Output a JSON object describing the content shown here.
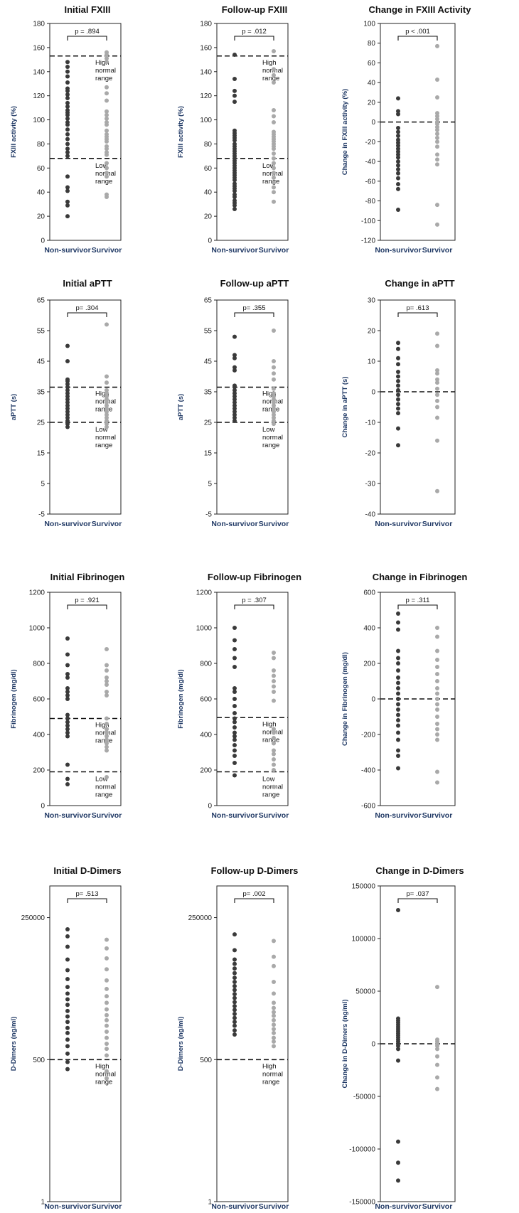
{
  "colors": {
    "nonsurvivor": "#3a3a3a",
    "survivor": "#a9a9a9",
    "axis": "#222222",
    "label": "#1f3864"
  },
  "chart_data": [
    {
      "type": "scatter",
      "id": "initial-fxiii",
      "title": "Initial FXIII",
      "ylabel": "FXIII activity (%)",
      "ylim": [
        0,
        180
      ],
      "yticks": [
        0,
        20,
        40,
        60,
        80,
        100,
        120,
        140,
        160,
        180
      ],
      "categories": [
        "Non-survivor",
        "Survivor"
      ],
      "pvalue": "p = .894",
      "refs": [
        {
          "y": 153,
          "label": [
            "High",
            "normal",
            "range"
          ]
        },
        {
          "y": 68,
          "label": [
            "Low",
            "normal",
            "range"
          ]
        }
      ],
      "series": [
        {
          "name": "Non-survivor",
          "values": [
            20,
            29,
            32,
            41,
            44,
            53,
            70,
            73,
            76,
            80,
            84,
            88,
            92,
            96,
            98,
            101,
            104,
            106,
            108,
            111,
            114,
            118,
            121,
            124,
            126,
            131,
            136,
            140,
            144,
            148
          ]
        },
        {
          "name": "Survivor",
          "values": [
            36,
            38,
            53,
            56,
            60,
            64,
            71,
            73,
            76,
            78,
            82,
            84,
            86,
            88,
            91,
            96,
            98,
            101,
            104,
            107,
            116,
            122,
            127,
            148,
            151,
            154,
            156
          ]
        }
      ]
    },
    {
      "type": "scatter",
      "id": "followup-fxiii",
      "title": "Follow-up FXIII",
      "ylabel": "FXIII activity (%)",
      "ylim": [
        0,
        180
      ],
      "yticks": [
        0,
        20,
        40,
        60,
        80,
        100,
        120,
        140,
        160,
        180
      ],
      "categories": [
        "Non-survivor",
        "Survivor"
      ],
      "pvalue": "p = .012",
      "refs": [
        {
          "y": 153,
          "label": [
            "High",
            "normal",
            "range"
          ]
        },
        {
          "y": 68,
          "label": [
            "Low",
            "normal",
            "range"
          ]
        }
      ],
      "series": [
        {
          "name": "Non-survivor",
          "values": [
            26,
            29,
            31,
            33,
            36,
            38,
            41,
            43,
            45,
            47,
            50,
            52,
            54,
            56,
            58,
            60,
            62,
            64,
            66,
            68,
            70,
            72,
            74,
            76,
            78,
            80,
            83,
            85,
            87,
            89,
            91,
            115,
            120,
            124,
            134,
            154
          ]
        },
        {
          "name": "Survivor",
          "values": [
            32,
            40,
            44,
            48,
            52,
            56,
            60,
            64,
            68,
            72,
            76,
            78,
            80,
            82,
            84,
            86,
            88,
            90,
            98,
            103,
            108,
            131,
            137,
            142,
            157
          ]
        }
      ]
    },
    {
      "type": "scatter",
      "id": "change-fxiii",
      "title": "Change in FXIII Activity",
      "ylabel": "Change in FXIII activity (%)",
      "ylim": [
        -120,
        100
      ],
      "yticks": [
        -120,
        -100,
        -80,
        -60,
        -40,
        -20,
        0,
        20,
        40,
        60,
        80,
        100
      ],
      "categories": [
        "Non-survivor",
        "Survivor"
      ],
      "pvalue": "p < .001",
      "refs": [
        {
          "y": 0,
          "label": []
        }
      ],
      "series": [
        {
          "name": "Non-survivor",
          "values": [
            -89,
            -68,
            -63,
            -57,
            -52,
            -48,
            -44,
            -40,
            -36,
            -33,
            -30,
            -27,
            -24,
            -21,
            -18,
            -14,
            -10,
            -6,
            8,
            11,
            24
          ]
        },
        {
          "name": "Survivor",
          "values": [
            -104,
            -84,
            -43,
            -38,
            -33,
            -25,
            -20,
            -16,
            -12,
            -8,
            -5,
            -2,
            0,
            3,
            6,
            9,
            25,
            43,
            77
          ]
        }
      ]
    },
    {
      "type": "scatter",
      "id": "initial-aptt",
      "title": "Initial aPTT",
      "ylabel": "aPTT (s)",
      "ylim": [
        -5,
        65
      ],
      "yticks": [
        -5,
        5,
        15,
        25,
        35,
        45,
        55,
        65
      ],
      "categories": [
        "Non-survivor",
        "Survivor"
      ],
      "pvalue": "p= .304",
      "refs": [
        {
          "y": 36.5,
          "label": [
            "High",
            "normal",
            "range"
          ]
        },
        {
          "y": 25,
          "label": [
            "Low",
            "normal",
            "range"
          ]
        }
      ],
      "series": [
        {
          "name": "Non-survivor",
          "values": [
            23.5,
            24.5,
            25.5,
            26.5,
            27.5,
            28.5,
            29.5,
            30.5,
            31.5,
            32.5,
            33.5,
            34.5,
            35.5,
            36.5,
            37.5,
            38.5,
            39,
            45,
            50
          ]
        },
        {
          "name": "Survivor",
          "values": [
            23.5,
            24.5,
            25.5,
            26.5,
            27.5,
            28.5,
            29.5,
            30.5,
            31.5,
            32.5,
            33.5,
            34.5,
            35.5,
            38,
            40,
            57
          ]
        }
      ]
    },
    {
      "type": "scatter",
      "id": "followup-aptt",
      "title": "Follow-up aPTT",
      "ylabel": "aPTT (s)",
      "ylim": [
        -5,
        65
      ],
      "yticks": [
        -5,
        5,
        15,
        25,
        35,
        45,
        55,
        65
      ],
      "categories": [
        "Non-survivor",
        "Survivor"
      ],
      "pvalue": "p= .355",
      "refs": [
        {
          "y": 36.5,
          "label": [
            "High",
            "normal",
            "range"
          ]
        },
        {
          "y": 25,
          "label": [
            "Low",
            "normal",
            "range"
          ]
        }
      ],
      "series": [
        {
          "name": "Non-survivor",
          "values": [
            25.5,
            26.5,
            27.5,
            28.5,
            29.5,
            30.5,
            31.5,
            32.5,
            33.5,
            34.5,
            35.5,
            36.5,
            37,
            42,
            43,
            46,
            47,
            53
          ]
        },
        {
          "name": "Survivor",
          "values": [
            24.5,
            25.5,
            26.5,
            27.5,
            28.5,
            29.5,
            30.5,
            31.5,
            32.5,
            33.5,
            34.5,
            36,
            39,
            41,
            43,
            45,
            55
          ]
        }
      ]
    },
    {
      "type": "scatter",
      "id": "change-aptt",
      "title": "Change in aPTT",
      "ylabel": "Change in aPTT (s)",
      "ylim": [
        -40,
        30
      ],
      "yticks": [
        -40,
        -30,
        -20,
        -10,
        0,
        10,
        20,
        30
      ],
      "categories": [
        "Non-survivor",
        "Survivor"
      ],
      "pvalue": "p= .613",
      "refs": [
        {
          "y": 0,
          "label": []
        }
      ],
      "series": [
        {
          "name": "Non-survivor",
          "values": [
            -17.5,
            -12,
            -7,
            -5.5,
            -4,
            -2.5,
            -1,
            0.5,
            2,
            3.5,
            5,
            6.5,
            9,
            11,
            14,
            16
          ]
        },
        {
          "name": "Survivor",
          "values": [
            -32.5,
            -16,
            -8.5,
            -5,
            -3,
            -1,
            1,
            3,
            4,
            6,
            7,
            15,
            19
          ]
        }
      ]
    },
    {
      "type": "scatter",
      "id": "initial-fibrinogen",
      "title": "Initial Fibrinogen",
      "ylabel": "Fibrinogen (mg/dl)",
      "ylim": [
        0,
        1200
      ],
      "yticks": [
        0,
        200,
        400,
        600,
        800,
        1000,
        1200
      ],
      "categories": [
        "Non-survivor",
        "Survivor"
      ],
      "pvalue": "p = .921",
      "refs": [
        {
          "y": 490,
          "label": [
            "High",
            "normal",
            "range"
          ]
        },
        {
          "y": 190,
          "label": [
            "Low",
            "normal",
            "range"
          ]
        }
      ],
      "series": [
        {
          "name": "Non-survivor",
          "values": [
            120,
            150,
            230,
            390,
            410,
            430,
            450,
            470,
            490,
            510,
            600,
            620,
            640,
            660,
            720,
            740,
            790,
            850,
            940
          ]
        },
        {
          "name": "Survivor",
          "values": [
            160,
            310,
            330,
            350,
            370,
            390,
            410,
            430,
            460,
            490,
            620,
            640,
            680,
            700,
            720,
            760,
            790,
            880
          ]
        }
      ]
    },
    {
      "type": "scatter",
      "id": "followup-fibrinogen",
      "title": "Follow-up Fibrinogen",
      "ylabel": "Fibrinogen (mg/dl)",
      "ylim": [
        0,
        1200
      ],
      "yticks": [
        0,
        200,
        400,
        600,
        800,
        1000,
        1200
      ],
      "categories": [
        "Non-survivor",
        "Survivor"
      ],
      "pvalue": "p = .307",
      "refs": [
        {
          "y": 495,
          "label": [
            "High",
            "normal",
            "range"
          ]
        },
        {
          "y": 190,
          "label": [
            "Low",
            "normal",
            "range"
          ]
        }
      ],
      "series": [
        {
          "name": "Non-survivor",
          "values": [
            170,
            240,
            280,
            310,
            340,
            370,
            390,
            410,
            440,
            470,
            490,
            520,
            560,
            600,
            640,
            660,
            780,
            830,
            880,
            930,
            1000
          ]
        },
        {
          "name": "Survivor",
          "values": [
            105,
            200,
            230,
            260,
            290,
            310,
            350,
            380,
            410,
            430,
            590,
            640,
            670,
            700,
            730,
            760,
            830,
            860
          ]
        }
      ]
    },
    {
      "type": "scatter",
      "id": "change-fibrinogen",
      "title": "Change in Fibrinogen",
      "ylabel": "Change in Fibrinogen (mg/dl)",
      "ylim": [
        -600,
        600
      ],
      "yticks": [
        -600,
        -400,
        -200,
        0,
        200,
        400,
        600
      ],
      "categories": [
        "Non-survivor",
        "Survivor"
      ],
      "pvalue": "p = .311",
      "refs": [
        {
          "y": 0,
          "label": []
        }
      ],
      "series": [
        {
          "name": "Non-survivor",
          "values": [
            -390,
            -320,
            -290,
            -230,
            -190,
            -150,
            -120,
            -90,
            -60,
            -30,
            0,
            30,
            60,
            90,
            120,
            160,
            200,
            230,
            270,
            390,
            430,
            480
          ]
        },
        {
          "name": "Survivor",
          "values": [
            -470,
            -410,
            -230,
            -200,
            -170,
            -140,
            -100,
            -60,
            -30,
            0,
            30,
            60,
            100,
            140,
            180,
            220,
            270,
            350,
            400
          ]
        }
      ]
    },
    {
      "type": "scatter",
      "id": "initial-ddimers",
      "title": "Initial D-Dimers",
      "ylabel": "D-Dimers (ng/ml)",
      "yscale": "log",
      "ylim": [
        1,
        1000000
      ],
      "yticks": [
        1,
        500,
        250000
      ],
      "categories": [
        "Non-survivor",
        "Survivor"
      ],
      "pvalue": "p= .513",
      "refs": [
        {
          "y": 500,
          "label": [
            "High",
            "normal",
            "range"
          ]
        }
      ],
      "series": [
        {
          "name": "Non-survivor",
          "values": [
            330,
            450,
            650,
            900,
            1200,
            1600,
            2000,
            2600,
            3300,
            4200,
            5500,
            7000,
            9000,
            12000,
            17000,
            25000,
            40000,
            70000,
            110000,
            150000
          ]
        },
        {
          "name": "Survivor",
          "values": [
            220,
            300,
            600,
            800,
            1000,
            1300,
            1700,
            2200,
            2800,
            3500,
            4500,
            6000,
            8000,
            11000,
            16000,
            26000,
            42000,
            65000,
            95000
          ]
        }
      ]
    },
    {
      "type": "scatter",
      "id": "followup-ddimers",
      "title": "Follow-up D-Dimers",
      "ylabel": "D-Dimers (ng/ml)",
      "yscale": "log",
      "ylim": [
        1,
        1000000
      ],
      "yticks": [
        1,
        500,
        250000
      ],
      "categories": [
        "Non-survivor",
        "Survivor"
      ],
      "pvalue": "p= .002",
      "refs": [
        {
          "y": 500,
          "label": [
            "High",
            "normal",
            "range"
          ]
        }
      ],
      "series": [
        {
          "name": "Non-survivor",
          "values": [
            1500,
            1800,
            2200,
            2600,
            3100,
            3700,
            4400,
            5200,
            6200,
            7400,
            8800,
            10500,
            12500,
            15000,
            18000,
            22000,
            27000,
            33000,
            40000,
            60000,
            120000
          ]
        },
        {
          "name": "Survivor",
          "values": [
            900,
            1100,
            1300,
            1600,
            1900,
            2300,
            2800,
            3400,
            4000,
            4800,
            6000,
            9000,
            15000,
            30000,
            45000,
            90000
          ]
        }
      ]
    },
    {
      "type": "scatter",
      "id": "change-ddimers",
      "title": "Change in D-Dimers",
      "ylabel": "Change in D-Dimers (ng/ml)",
      "ylim": [
        -150000,
        150000
      ],
      "yticks": [
        -150000,
        -100000,
        -50000,
        0,
        50000,
        100000,
        150000
      ],
      "categories": [
        "Non-survivor",
        "Survivor"
      ],
      "pvalue": "p= .037",
      "refs": [
        {
          "y": 0,
          "label": []
        }
      ],
      "series": [
        {
          "name": "Non-survivor",
          "values": [
            -130000,
            -113000,
            -93000,
            -16000,
            -5000,
            -2000,
            0,
            2000,
            4000,
            6000,
            8000,
            10000,
            12000,
            14000,
            16000,
            18000,
            20000,
            22000,
            24000,
            127000
          ]
        },
        {
          "name": "Survivor",
          "values": [
            -43000,
            -32000,
            -20000,
            -12000,
            -5000,
            -2000,
            0,
            2000,
            4000,
            54000
          ]
        }
      ]
    }
  ]
}
